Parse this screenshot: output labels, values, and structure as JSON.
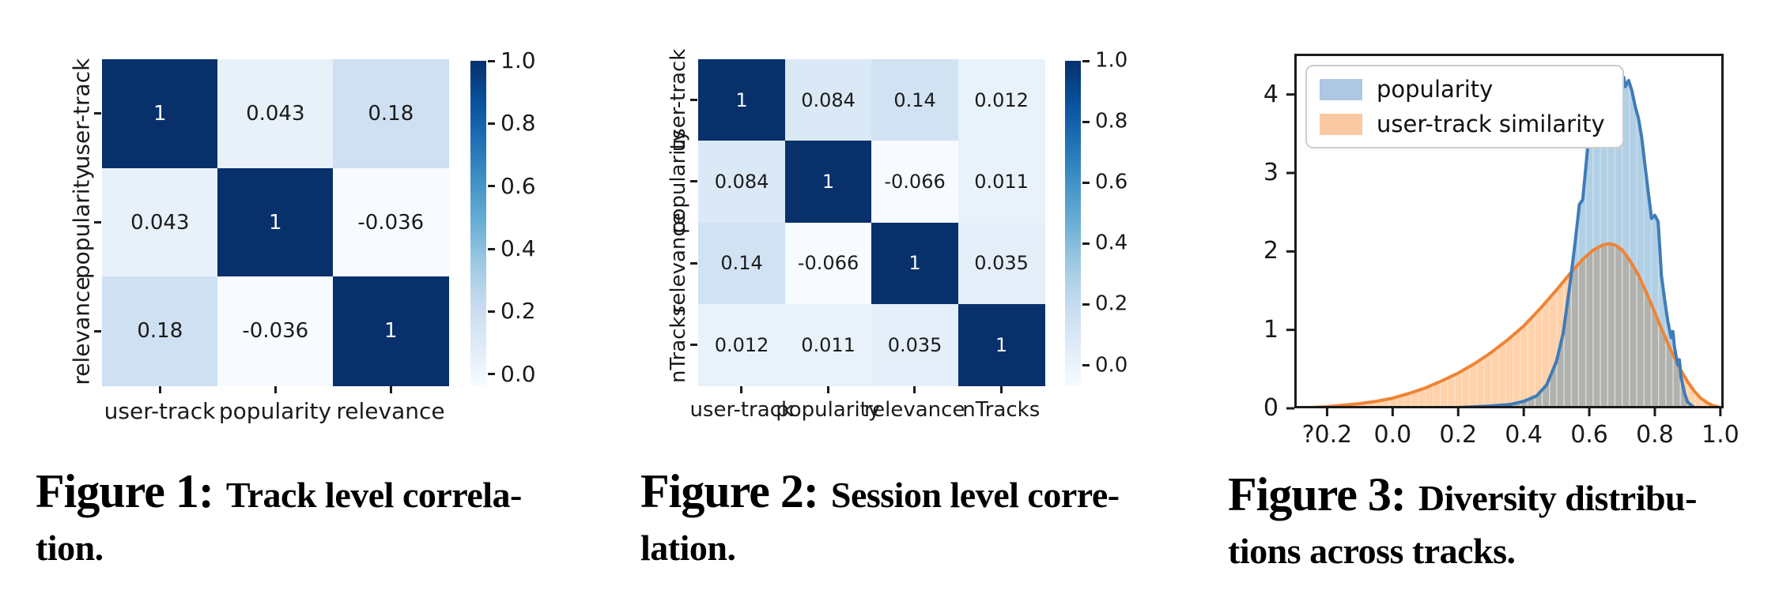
{
  "captions": [
    {
      "label": "Figure 1:",
      "line1": "Track level correla-",
      "line2": "tion."
    },
    {
      "label": "Figure 2:",
      "line1": "Session level corre-",
      "line2": "lation."
    },
    {
      "label": "Figure 3:",
      "line1": "Diversity distribu-",
      "line2": "tions across tracks."
    }
  ],
  "colors": {
    "axis": "#1a1a1a",
    "cell_text_dark": "#1b1b1b",
    "cell_text_light": "#f5f8fc",
    "blue_line": "#3f7cb8",
    "blue_fill": "rgba(31,119,180,0.35)",
    "orange_line": "#ee8435",
    "orange_fill": "rgba(255,127,14,0.35)",
    "legend_border": "#cdcdcd"
  },
  "chart_data": [
    {
      "type": "heatmap",
      "title": "Track level correlation",
      "labels": [
        "user-track",
        "popularity",
        "relevance"
      ],
      "matrix": [
        [
          1,
          0.043,
          0.18
        ],
        [
          0.043,
          1,
          -0.036
        ],
        [
          0.18,
          -0.036,
          1
        ]
      ],
      "cell_text": [
        [
          "1",
          "0.043",
          "0.18"
        ],
        [
          "0.043",
          "1",
          "-0.036"
        ],
        [
          "0.18",
          "-0.036",
          "1"
        ]
      ],
      "colormap": "Blues",
      "vmin": -0.036,
      "vmax": 1.0,
      "colorbar_ticks": [
        1.0,
        0.8,
        0.6,
        0.4,
        0.2,
        0.0
      ],
      "colorbar_tick_labels": [
        "1.0",
        "0.8",
        "0.6",
        "0.4",
        "0.2",
        "0.0"
      ]
    },
    {
      "type": "heatmap",
      "title": "Session level correlation",
      "labels": [
        "user-track",
        "popularity",
        "relevance",
        "nTracks"
      ],
      "matrix": [
        [
          1,
          0.084,
          0.14,
          0.012
        ],
        [
          0.084,
          1,
          -0.066,
          0.011
        ],
        [
          0.14,
          -0.066,
          1,
          0.035
        ],
        [
          0.012,
          0.011,
          0.035,
          1
        ]
      ],
      "cell_text": [
        [
          "1",
          "0.084",
          "0.14",
          "0.012"
        ],
        [
          "0.084",
          "1",
          "-0.066",
          "0.011"
        ],
        [
          "0.14",
          "-0.066",
          "1",
          "0.035"
        ],
        [
          "0.012",
          "0.011",
          "0.035",
          "1"
        ]
      ],
      "colormap": "Blues",
      "vmin": -0.066,
      "vmax": 1.0,
      "colorbar_ticks": [
        1.0,
        0.8,
        0.6,
        0.4,
        0.2,
        0.0
      ],
      "colorbar_tick_labels": [
        "1.0",
        "0.8",
        "0.6",
        "0.4",
        "0.2",
        "0.0"
      ]
    },
    {
      "type": "area",
      "title": "Diversity distributions across tracks",
      "legend_position": "upper left",
      "xlim": [
        -0.3,
        1.01
      ],
      "ylim": [
        0,
        4.52
      ],
      "xticks": [
        -0.2,
        0.0,
        0.2,
        0.4,
        0.6,
        0.8,
        1.0
      ],
      "xtick_labels": [
        "?0.2",
        "0.0",
        "0.2",
        "0.4",
        "0.6",
        "0.8",
        "1.0"
      ],
      "yticks": [
        0,
        1,
        2,
        3,
        4
      ],
      "ytick_labels": [
        "0",
        "1",
        "2",
        "3",
        "4"
      ],
      "grid": false,
      "series": [
        {
          "name": "popularity",
          "line_color": "#3f7cb8",
          "fill_color": "rgba(31,119,180,0.35)",
          "swatch": "#aec7e2",
          "x": [
            0.08,
            0.2,
            0.3,
            0.36,
            0.4,
            0.44,
            0.47,
            0.5,
            0.52,
            0.54,
            0.555,
            0.57,
            0.58,
            0.59,
            0.6,
            0.61,
            0.615,
            0.62,
            0.63,
            0.64,
            0.65,
            0.655,
            0.66,
            0.665,
            0.67,
            0.675,
            0.68,
            0.685,
            0.69,
            0.695,
            0.7,
            0.705,
            0.71,
            0.72,
            0.73,
            0.74,
            0.75,
            0.76,
            0.77,
            0.78,
            0.79,
            0.8,
            0.81,
            0.815,
            0.82,
            0.83,
            0.84,
            0.85,
            0.855,
            0.86,
            0.87,
            0.875,
            0.88,
            0.89,
            0.9,
            0.92,
            0.94
          ],
          "y": [
            0.0,
            0.01,
            0.03,
            0.05,
            0.09,
            0.16,
            0.3,
            0.6,
            0.95,
            1.55,
            2.05,
            2.6,
            2.66,
            3.1,
            3.55,
            3.75,
            3.7,
            3.9,
            4.02,
            3.98,
            4.18,
            4.28,
            4.1,
            4.22,
            4.3,
            4.05,
            3.95,
            4.22,
            4.12,
            4.05,
            4.18,
            4.22,
            4.1,
            4.18,
            4.05,
            3.85,
            3.7,
            3.45,
            3.1,
            2.75,
            2.42,
            2.46,
            2.38,
            2.05,
            1.7,
            1.38,
            1.1,
            0.9,
            0.98,
            0.78,
            0.55,
            0.62,
            0.4,
            0.2,
            0.08,
            0.01,
            0.0
          ]
        },
        {
          "name": "user-track similarity",
          "line_color": "#ee8435",
          "fill_color": "rgba(255,127,14,0.35)",
          "swatch": "#f8c9a2",
          "x": [
            -0.3,
            -0.25,
            -0.2,
            -0.15,
            -0.1,
            -0.05,
            0.0,
            0.05,
            0.1,
            0.15,
            0.2,
            0.25,
            0.3,
            0.35,
            0.4,
            0.45,
            0.5,
            0.55,
            0.58,
            0.61,
            0.64,
            0.66,
            0.68,
            0.7,
            0.72,
            0.75,
            0.78,
            0.8,
            0.82,
            0.85,
            0.88,
            0.9,
            0.92,
            0.94,
            0.96,
            0.98,
            1.0
          ],
          "y": [
            0.0,
            0.01,
            0.02,
            0.04,
            0.06,
            0.09,
            0.13,
            0.19,
            0.26,
            0.35,
            0.45,
            0.57,
            0.71,
            0.87,
            1.05,
            1.27,
            1.51,
            1.76,
            1.9,
            2.01,
            2.08,
            2.1,
            2.08,
            2.02,
            1.91,
            1.7,
            1.42,
            1.22,
            1.02,
            0.73,
            0.48,
            0.34,
            0.22,
            0.13,
            0.07,
            0.03,
            0.01
          ]
        }
      ]
    }
  ]
}
